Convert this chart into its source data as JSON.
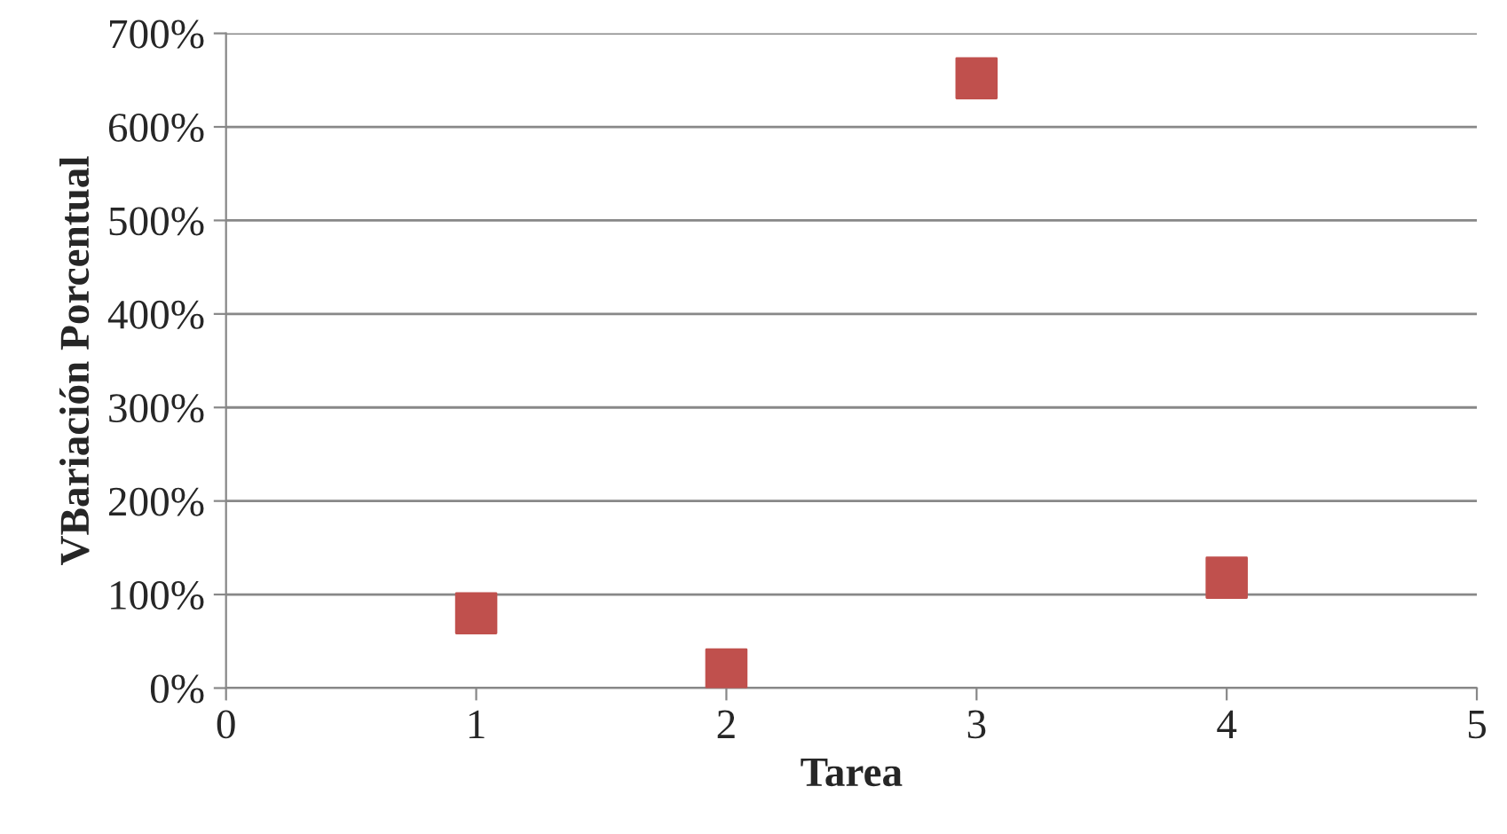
{
  "chart_data": {
    "type": "scatter",
    "xlabel": "Tarea",
    "ylabel": "VBariación Porcentual",
    "x": [
      1,
      2,
      3,
      4
    ],
    "series": [
      {
        "color": "#c0504d",
        "values": [
          80,
          20,
          652,
          118
        ]
      }
    ],
    "marker": "square",
    "grid": "y",
    "xlim": [
      0,
      5
    ],
    "xticks": [
      0,
      1,
      2,
      3,
      4,
      5
    ],
    "ylim": [
      0,
      700
    ],
    "yticks": [
      {
        "value": 0,
        "label": "0%"
      },
      {
        "value": 100,
        "label": "100%"
      },
      {
        "value": 200,
        "label": "200%"
      },
      {
        "value": 300,
        "label": "300%"
      },
      {
        "value": 400,
        "label": "400%"
      },
      {
        "value": 500,
        "label": "500%"
      },
      {
        "value": 600,
        "label": "600%"
      },
      {
        "value": 700,
        "label": "700%"
      }
    ]
  }
}
